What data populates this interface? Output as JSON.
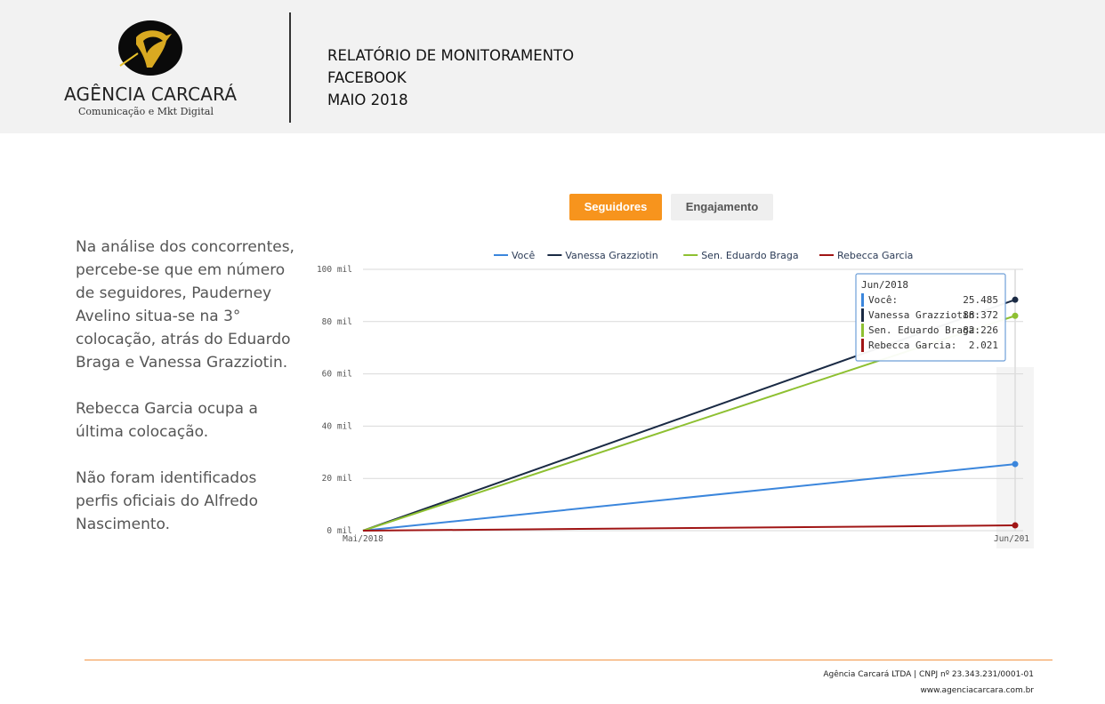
{
  "header": {
    "logo": {
      "name": "AGÊNCIA CARCARÁ",
      "tagline": "Comunicação e Mkt Digital",
      "icon": "carcara-bird-logo"
    },
    "title_lines": [
      "RELATÓRIO DE MONITORAMENTO",
      "FACEBOOK",
      "MAIO 2018"
    ]
  },
  "tabs": [
    {
      "label": "Seguidores",
      "active": true
    },
    {
      "label": "Engajamento",
      "active": false
    }
  ],
  "narrative": [
    "Na análise dos concorrentes, percebe-se que em número de seguidores, Pauderney Avelino situa-se na 3° colocação, atrás do Eduardo Braga e Vanessa Grazziotin.",
    "Rebecca Garcia ocupa a última colocação.",
    "Não foram identificados perfis oficiais do Alfredo Nascimento."
  ],
  "chart_data": {
    "type": "line",
    "x": [
      "Mai/2018",
      "Jun/2018"
    ],
    "x_tick_labels": [
      "Mai/2018",
      "Jun/201"
    ],
    "y_ticks": [
      "0 mil",
      "20 mil",
      "40 mil",
      "60 mil",
      "80 mil",
      "100 mil"
    ],
    "ylim": [
      0,
      100000
    ],
    "grid": true,
    "legend_position": "top",
    "series": [
      {
        "name": "Você",
        "values": [
          0,
          25485
        ],
        "color": "#3b86dc"
      },
      {
        "name": "Vanessa Grazziotin",
        "values": [
          0,
          88372
        ],
        "color": "#1a2a44"
      },
      {
        "name": "Sen. Eduardo Braga",
        "values": [
          0,
          82226
        ],
        "color": "#8ec031"
      },
      {
        "name": "Rebecca Garcia",
        "values": [
          0,
          2021
        ],
        "color": "#a01515"
      }
    ],
    "tooltip": {
      "title": "Jun/2018",
      "rows": [
        {
          "name": "Você:",
          "value": "25.485"
        },
        {
          "name": "Vanessa Grazziotin:",
          "value": "88.372"
        },
        {
          "name": "Sen. Eduardo Braga:",
          "value": "82.226"
        },
        {
          "name": "Rebecca Garcia:",
          "value": "2.021"
        }
      ]
    }
  },
  "footer": {
    "company": "Agência Carcará LTDA | CNPJ nº 23.343.231/0001-01",
    "website": "www.agenciacarcara.com.br"
  }
}
